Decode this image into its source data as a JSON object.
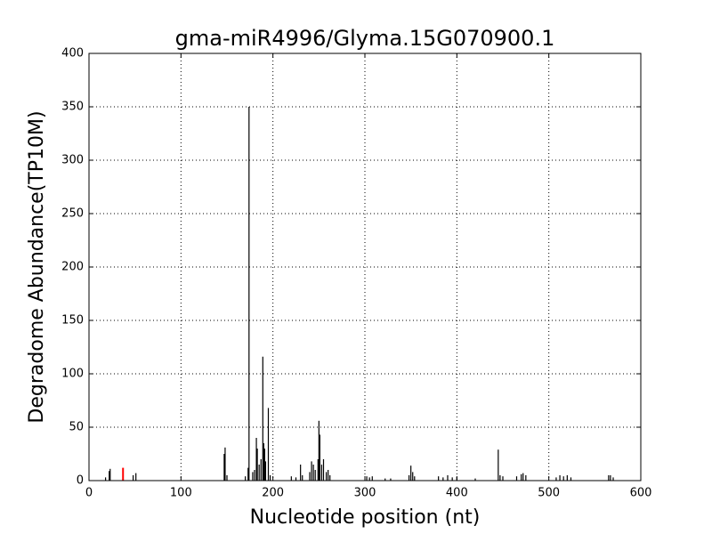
{
  "chart_data": {
    "type": "stem",
    "title": "gma-miR4996/Glyma.15G070900.1",
    "x_label": "Nucleotide position (nt)",
    "y_label": "Degradome Abundance(TP10M)",
    "xlim": [
      0,
      600
    ],
    "ylim": [
      0,
      400
    ],
    "xticks": [
      0,
      100,
      200,
      300,
      400,
      500,
      600
    ],
    "yticks": [
      0,
      50,
      100,
      150,
      200,
      250,
      300,
      350,
      400
    ],
    "grid": true,
    "series": [
      {
        "color": "#000000",
        "x": [
          18,
          22,
          23,
          48,
          51,
          147,
          148,
          150,
          170,
          173,
          174,
          178,
          180,
          182,
          183,
          185,
          187,
          189,
          190,
          191,
          192,
          195,
          197,
          220,
          225,
          230,
          232,
          240,
          242,
          244,
          246,
          249,
          250,
          251,
          253,
          255,
          258,
          260,
          262,
          302,
          305,
          308,
          322,
          328,
          348,
          350,
          352,
          354,
          380,
          385,
          390,
          395,
          400,
          420,
          445,
          447,
          450,
          465,
          470,
          472,
          475,
          508,
          512,
          516,
          520,
          524,
          565,
          567,
          570
        ],
        "values": [
          3,
          9,
          11,
          5,
          7,
          25,
          31,
          5,
          4,
          12,
          350,
          8,
          10,
          40,
          30,
          15,
          20,
          116,
          35,
          30,
          18,
          68,
          5,
          4,
          3,
          15,
          5,
          8,
          18,
          15,
          10,
          20,
          56,
          43,
          15,
          20,
          8,
          10,
          5,
          4,
          3,
          4,
          2,
          2,
          5,
          14,
          8,
          4,
          4,
          3,
          5,
          3,
          3,
          2,
          29,
          5,
          4,
          4,
          6,
          7,
          5,
          3,
          5,
          4,
          5,
          3,
          5,
          5,
          3
        ]
      },
      {
        "color": "#ff0000",
        "x": [
          37
        ],
        "values": [
          12
        ]
      }
    ]
  }
}
